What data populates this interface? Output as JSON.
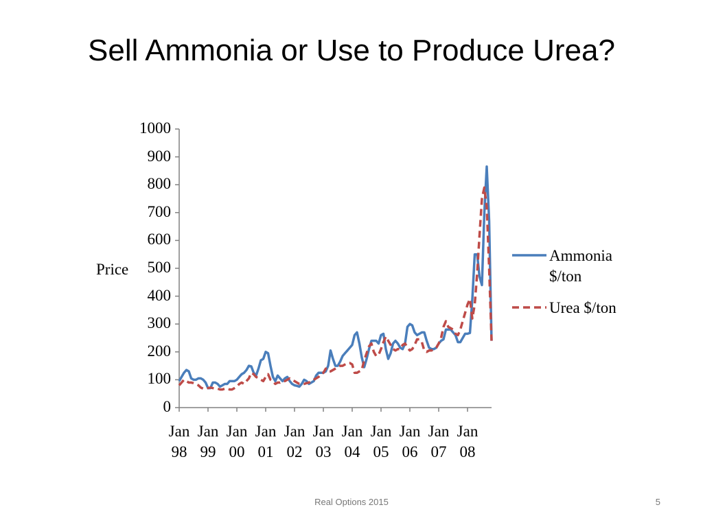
{
  "title": "Sell Ammonia or Use to Produce Urea?",
  "footer": "Real Options 2015",
  "page_number": "5",
  "chart_data": {
    "type": "line",
    "ylabel": "Price",
    "categories": [
      "Jan 98",
      null,
      null,
      null,
      null,
      null,
      null,
      null,
      null,
      null,
      null,
      null,
      "Jan 99",
      null,
      null,
      null,
      null,
      null,
      null,
      null,
      null,
      null,
      null,
      null,
      "Jan 00",
      null,
      null,
      null,
      null,
      null,
      null,
      null,
      null,
      null,
      null,
      null,
      "Jan 01",
      null,
      null,
      null,
      null,
      null,
      null,
      null,
      null,
      null,
      null,
      null,
      "Jan 02",
      null,
      null,
      null,
      null,
      null,
      null,
      null,
      null,
      null,
      null,
      null,
      "Jan 03",
      null,
      null,
      null,
      null,
      null,
      null,
      null,
      null,
      null,
      null,
      null,
      "Jan 04",
      null,
      null,
      null,
      null,
      null,
      null,
      null,
      null,
      null,
      null,
      null,
      "Jan 05",
      null,
      null,
      null,
      null,
      null,
      null,
      null,
      null,
      null,
      null,
      null,
      "Jan 06",
      null,
      null,
      null,
      null,
      null,
      null,
      null,
      null,
      null,
      null,
      null,
      "Jan 07",
      null,
      null,
      null,
      null,
      null,
      null,
      null,
      null,
      null,
      null,
      null,
      "Jan 08",
      null,
      null,
      null,
      null,
      null,
      null,
      null,
      null,
      null,
      null
    ],
    "series": [
      {
        "name": "Ammonia $/ton",
        "color": "#4a7ebb",
        "dashed": false,
        "values": [
          95,
          110,
          125,
          135,
          130,
          105,
          100,
          100,
          105,
          105,
          100,
          90,
          70,
          70,
          90,
          90,
          85,
          75,
          80,
          85,
          85,
          95,
          95,
          95,
          100,
          110,
          120,
          125,
          135,
          150,
          148,
          125,
          115,
          140,
          170,
          175,
          200,
          195,
          150,
          110,
          95,
          115,
          105,
          95,
          105,
          110,
          95,
          85,
          80,
          78,
          75,
          85,
          100,
          95,
          85,
          90,
          95,
          115,
          125,
          125,
          125,
          130,
          150,
          205,
          175,
          150,
          150,
          165,
          185,
          195,
          205,
          215,
          225,
          260,
          270,
          230,
          180,
          145,
          175,
          210,
          240,
          240,
          240,
          230,
          260,
          265,
          210,
          175,
          195,
          230,
          240,
          230,
          215,
          210,
          230,
          290,
          300,
          295,
          270,
          260,
          265,
          270,
          270,
          240,
          215,
          210,
          210,
          215,
          230,
          240,
          245,
          280,
          280,
          280,
          270,
          260,
          235,
          235,
          250,
          265,
          265,
          268,
          390,
          550,
          550,
          470,
          440,
          700,
          865,
          670,
          240
        ]
      },
      {
        "name": "Urea $/ton",
        "color": "#be4b48",
        "dashed": true,
        "values": [
          80,
          90,
          100,
          95,
          90,
          90,
          88,
          85,
          80,
          72,
          68,
          68,
          70,
          72,
          70,
          68,
          68,
          65,
          65,
          68,
          68,
          65,
          65,
          70,
          75,
          85,
          90,
          85,
          95,
          105,
          125,
          120,
          110,
          105,
          100,
          95,
          110,
          120,
          100,
          95,
          85,
          90,
          90,
          95,
          95,
          100,
          105,
          100,
          95,
          90,
          85,
          85,
          85,
          88,
          90,
          95,
          100,
          105,
          110,
          120,
          125,
          140,
          130,
          130,
          135,
          140,
          145,
          150,
          150,
          155,
          160,
          160,
          155,
          125,
          125,
          130,
          135,
          170,
          195,
          220,
          230,
          200,
          185,
          190,
          210,
          235,
          255,
          240,
          225,
          210,
          205,
          210,
          210,
          225,
          230,
          215,
          205,
          210,
          225,
          245,
          245,
          235,
          205,
          200,
          205,
          205,
          210,
          215,
          230,
          250,
          290,
          310,
          290,
          285,
          280,
          265,
          260,
          280,
          310,
          340,
          370,
          390,
          320,
          370,
          480,
          620,
          750,
          790,
          720,
          500,
          240
        ]
      }
    ],
    "ylim": [
      0,
      1000
    ],
    "yticks": [
      0,
      100,
      200,
      300,
      400,
      500,
      600,
      700,
      800,
      900,
      1000
    ],
    "legend": "right",
    "grid": false
  }
}
